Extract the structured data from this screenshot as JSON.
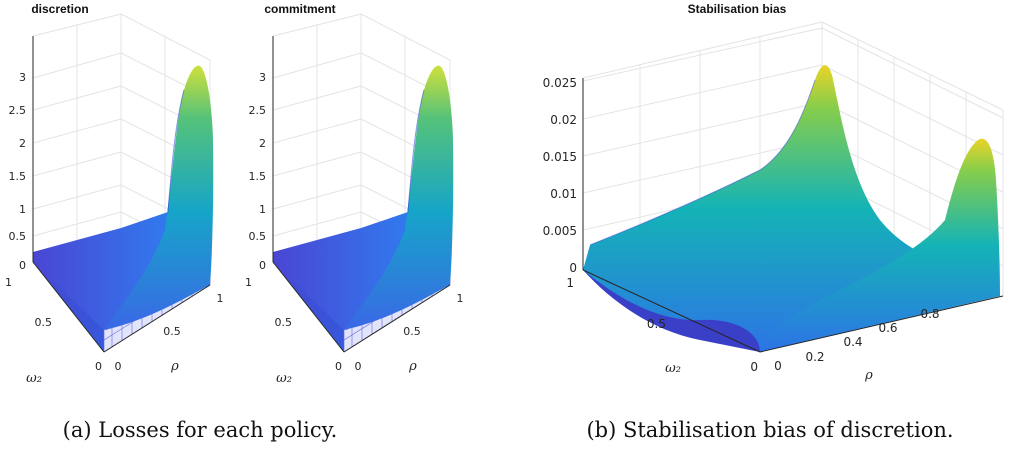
{
  "chart_data": [
    {
      "type": "surface",
      "title": "discretion",
      "xlabel": "ρ",
      "ylabel": "ω₂",
      "zlabel": "",
      "x_ticks": [
        "0",
        "0.5",
        "1"
      ],
      "y_ticks": [
        "0",
        "0.5",
        "1"
      ],
      "z_ticks": [
        "0",
        "0.5",
        "1",
        "1.5",
        "2",
        "2.5",
        "3"
      ],
      "xlim": [
        0,
        1
      ],
      "ylim": [
        0,
        1
      ],
      "zlim": [
        0,
        3
      ],
      "grid": true,
      "colormap": "parula",
      "surface_samples": [
        {
          "rho": 0,
          "omega2": 1,
          "value": 0.2
        },
        {
          "rho": 0,
          "omega2": 0,
          "value": 0
        },
        {
          "rho": 0.5,
          "omega2": 0.5,
          "value": 0.25
        },
        {
          "rho": 1,
          "omega2": 0,
          "value": 0
        },
        {
          "rho": 0.9,
          "omega2": 0.9,
          "value": 2.1
        },
        {
          "rho": 1,
          "omega2": 1,
          "value": 3.0
        }
      ]
    },
    {
      "type": "surface",
      "title": "commitment",
      "xlabel": "ρ",
      "ylabel": "ω₂",
      "zlabel": "",
      "x_ticks": [
        "0",
        "0.5",
        "1"
      ],
      "y_ticks": [
        "0",
        "0.5",
        "1"
      ],
      "z_ticks": [
        "0",
        "0.5",
        "1",
        "1.5",
        "2",
        "2.5",
        "3"
      ],
      "xlim": [
        0,
        1
      ],
      "ylim": [
        0,
        1
      ],
      "zlim": [
        0,
        3
      ],
      "grid": true,
      "colormap": "parula",
      "surface_samples": [
        {
          "rho": 0,
          "omega2": 1,
          "value": 0.2
        },
        {
          "rho": 0,
          "omega2": 0,
          "value": 0
        },
        {
          "rho": 0.5,
          "omega2": 0.5,
          "value": 0.25
        },
        {
          "rho": 1,
          "omega2": 0,
          "value": 0
        },
        {
          "rho": 0.9,
          "omega2": 0.9,
          "value": 2.1
        },
        {
          "rho": 1,
          "omega2": 1,
          "value": 3.0
        }
      ]
    },
    {
      "type": "surface",
      "title": "Stabilisation bias",
      "xlabel": "ρ",
      "ylabel": "ω₂",
      "zlabel": "",
      "x_ticks": [
        "0",
        "0.2",
        "0.4",
        "0.6",
        "0.8"
      ],
      "y_ticks": [
        "0",
        "0.5",
        "1"
      ],
      "z_ticks": [
        "0",
        "0.005",
        "0.01",
        "0.015",
        "0.02",
        "0.025"
      ],
      "xlim": [
        0,
        1
      ],
      "ylim": [
        0,
        1
      ],
      "zlim": [
        0,
        0.025
      ],
      "grid": true,
      "colormap": "parula",
      "surface_samples": [
        {
          "rho": 0,
          "omega2": 1,
          "value": 0.003
        },
        {
          "rho": 0.35,
          "omega2": 0.5,
          "value": 0.001
        },
        {
          "rho": 0.35,
          "omega2": 0.05,
          "value": 0.0
        },
        {
          "rho": 0.6,
          "omega2": 0.95,
          "value": 0.027
        },
        {
          "rho": 0.9,
          "omega2": 0.95,
          "value": 0.0
        },
        {
          "rho": 0.95,
          "omega2": 0.5,
          "value": 0.02
        }
      ]
    }
  ],
  "captions": {
    "a": "(a) Losses for each policy.",
    "b": "(b) Stabilisation bias of discretion."
  },
  "colors": {
    "surface_low": "#3e3cc7",
    "surface_mid": "#14a7c4",
    "surface_high": "#f1e51d",
    "grid": "#e6e6e6",
    "axis": "#262626"
  }
}
